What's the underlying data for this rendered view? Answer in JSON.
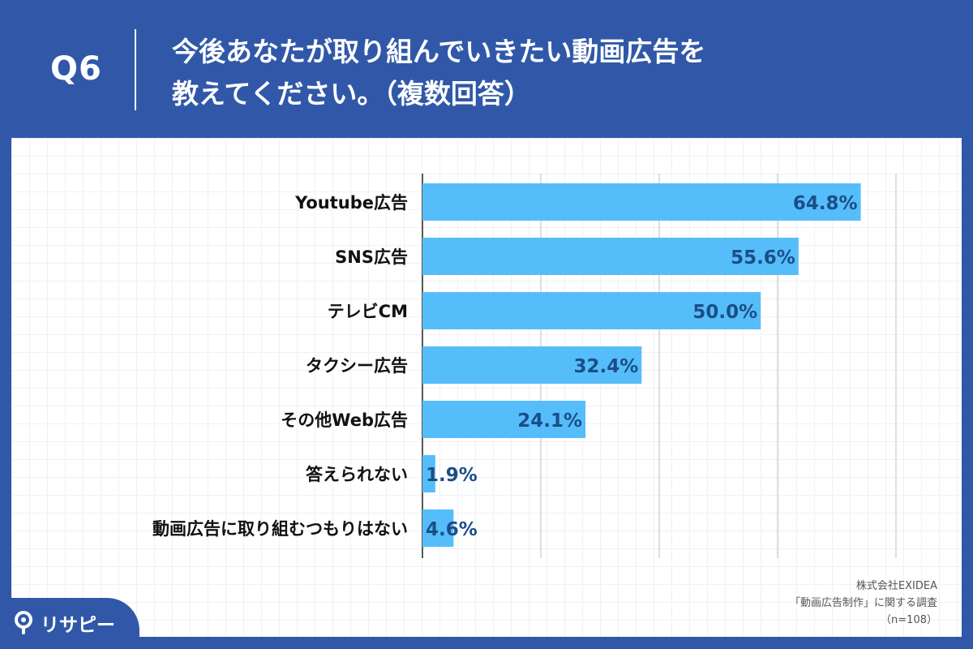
{
  "header": {
    "q_label": "Q6",
    "question_line1": "今後あなたが取り組んでいきたい動画広告を",
    "question_line2": "教えてください。（複数回答）"
  },
  "chart_data": {
    "type": "bar",
    "orientation": "horizontal",
    "categories": [
      "Youtube広告",
      "SNS広告",
      "テレビCM",
      "タクシー広告",
      "その他Web広告",
      "答えられない",
      "動画広告に取り組むつもりはない"
    ],
    "values": [
      64.8,
      55.6,
      50.0,
      32.4,
      24.1,
      1.9,
      4.6
    ],
    "value_labels": [
      "64.8%",
      "55.6%",
      "50.0%",
      "32.4%",
      "24.1%",
      "1.9%",
      "4.6%"
    ],
    "xlim": [
      0,
      70
    ],
    "gridlines_x": [
      17.5,
      35,
      52.5,
      70
    ],
    "grid": true,
    "bar_color": "#56bdfb",
    "label_color": "#1b4e86"
  },
  "source": {
    "line1": "株式会社EXIDEA",
    "line2": "「動画広告制作」に関する調査",
    "line3": "（n=108）"
  },
  "logo": {
    "text": "リサピー",
    "icon": "pin-icon"
  },
  "colors": {
    "background": "#3158a8",
    "panel": "#ffffff"
  }
}
